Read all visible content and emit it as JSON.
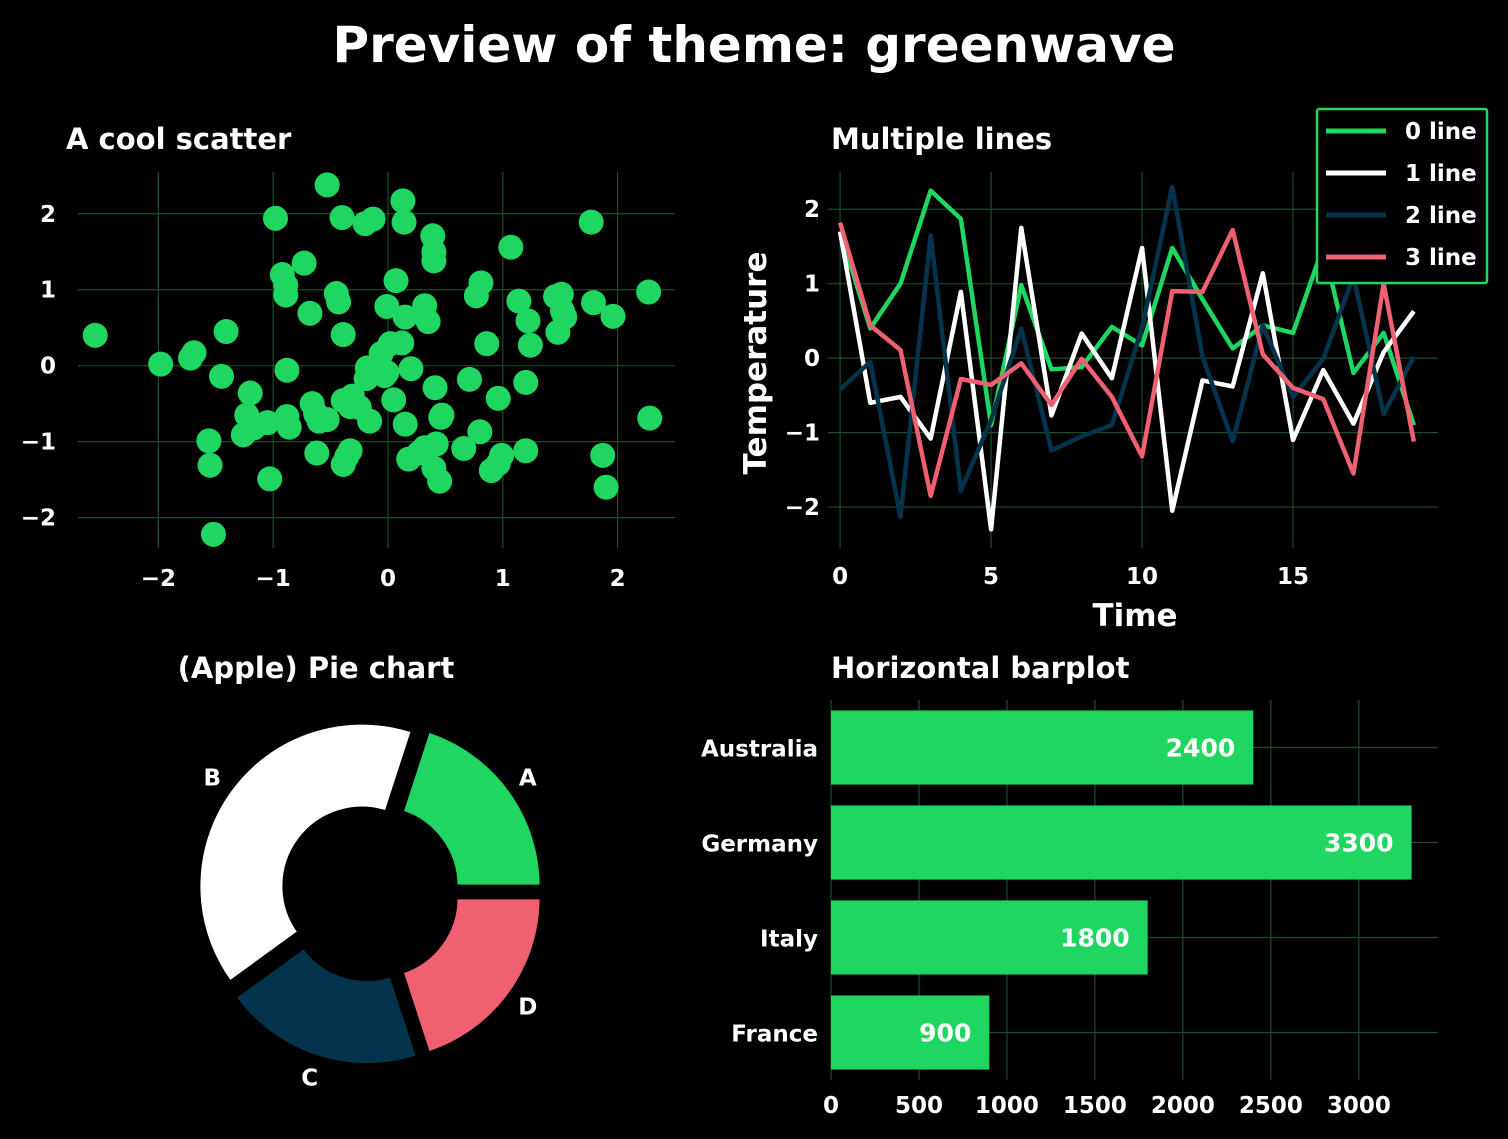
{
  "suptitle": "Preview of theme: greenwave",
  "colors": {
    "background": "#000000",
    "green": "#1fd660",
    "white": "#ffffff",
    "navy": "#04344d",
    "red": "#ef6071",
    "grid": "#1a4d28"
  },
  "chart_data": [
    {
      "type": "scatter",
      "title": "A cool scatter",
      "xlabel": "",
      "ylabel": "",
      "xlim": [
        -2.7,
        2.5
      ],
      "ylim": [
        -2.4,
        2.55
      ],
      "xticks": [
        -2,
        -1,
        0,
        1,
        2
      ],
      "yticks": [
        -2,
        -1,
        0,
        1,
        2
      ],
      "tick_labels_x": [
        "−2",
        "−1",
        "0",
        "1",
        "2"
      ],
      "tick_labels_y": [
        "−2",
        "−1",
        "0",
        "1",
        "2"
      ],
      "grid": true,
      "color": "#1fd660",
      "points": [
        [
          -2.55,
          0.4
        ],
        [
          -1.98,
          0.02
        ],
        [
          -1.72,
          0.1
        ],
        [
          -1.69,
          0.17
        ],
        [
          -1.56,
          -0.99
        ],
        [
          -1.55,
          -1.31
        ],
        [
          -1.52,
          -2.22
        ],
        [
          -1.45,
          -0.14
        ],
        [
          -1.41,
          0.45
        ],
        [
          -1.2,
          -0.36
        ],
        [
          -1.23,
          -0.65
        ],
        [
          -1.26,
          -0.91
        ],
        [
          -1.17,
          -0.82
        ],
        [
          -1.05,
          -0.75
        ],
        [
          -1.03,
          -1.49
        ],
        [
          -0.98,
          1.94
        ],
        [
          -0.92,
          1.2
        ],
        [
          -0.89,
          1.06
        ],
        [
          -0.89,
          0.93
        ],
        [
          -0.88,
          -0.06
        ],
        [
          -0.88,
          -0.67
        ],
        [
          -0.86,
          -0.81
        ],
        [
          -0.73,
          1.35
        ],
        [
          -0.68,
          0.69
        ],
        [
          -0.66,
          -0.5
        ],
        [
          -0.63,
          -0.63
        ],
        [
          -0.6,
          -0.73
        ],
        [
          -0.62,
          -1.15
        ],
        [
          -0.53,
          2.38
        ],
        [
          -0.53,
          -0.71
        ],
        [
          -0.45,
          0.95
        ],
        [
          -0.43,
          0.84
        ],
        [
          -0.4,
          1.95
        ],
        [
          -0.39,
          0.41
        ],
        [
          -0.39,
          -1.3
        ],
        [
          -0.39,
          -0.46
        ],
        [
          -0.36,
          -1.2
        ],
        [
          -0.33,
          -0.54
        ],
        [
          -0.31,
          -0.4
        ],
        [
          -0.33,
          -1.12
        ],
        [
          -0.25,
          -0.55
        ],
        [
          -0.2,
          1.87
        ],
        [
          -0.19,
          -0.17
        ],
        [
          -0.18,
          -0.03
        ],
        [
          -0.16,
          -0.73
        ],
        [
          -0.13,
          1.93
        ],
        [
          -0.06,
          0.16
        ],
        [
          -0.03,
          -0.13
        ],
        [
          -0.01,
          -0.09
        ],
        [
          -0.01,
          0.78
        ],
        [
          0.02,
          0.29
        ],
        [
          0.05,
          -0.45
        ],
        [
          0.07,
          1.12
        ],
        [
          0.12,
          0.3
        ],
        [
          0.13,
          2.17
        ],
        [
          0.14,
          1.89
        ],
        [
          0.15,
          -0.77
        ],
        [
          0.15,
          0.64
        ],
        [
          0.18,
          -1.23
        ],
        [
          0.2,
          -0.04
        ],
        [
          0.27,
          -1.15
        ],
        [
          0.32,
          0.79
        ],
        [
          0.32,
          -1.08
        ],
        [
          0.35,
          0.58
        ],
        [
          0.39,
          1.71
        ],
        [
          0.4,
          1.38
        ],
        [
          0.4,
          1.5
        ],
        [
          0.4,
          -1.35
        ],
        [
          0.41,
          -0.29
        ],
        [
          0.42,
          -1.03
        ],
        [
          0.45,
          -1.52
        ],
        [
          0.46,
          -0.68
        ],
        [
          0.47,
          -0.65
        ],
        [
          0.66,
          -1.09
        ],
        [
          0.71,
          -0.18
        ],
        [
          0.77,
          0.92
        ],
        [
          0.8,
          -0.87
        ],
        [
          0.81,
          1.09
        ],
        [
          0.86,
          0.29
        ],
        [
          0.9,
          -1.38
        ],
        [
          0.96,
          -0.43
        ],
        [
          0.96,
          -1.29
        ],
        [
          0.99,
          -1.18
        ],
        [
          1.07,
          1.56
        ],
        [
          1.14,
          0.85
        ],
        [
          1.2,
          -1.12
        ],
        [
          1.2,
          -0.22
        ],
        [
          1.22,
          0.59
        ],
        [
          1.24,
          0.27
        ],
        [
          1.46,
          0.91
        ],
        [
          1.48,
          0.44
        ],
        [
          1.51,
          0.94
        ],
        [
          1.52,
          0.72
        ],
        [
          1.54,
          0.64
        ],
        [
          1.77,
          1.89
        ],
        [
          1.79,
          0.83
        ],
        [
          1.87,
          -1.18
        ],
        [
          1.9,
          -1.6
        ],
        [
          1.96,
          0.65
        ],
        [
          2.27,
          0.97
        ],
        [
          2.28,
          -0.69
        ]
      ]
    },
    {
      "type": "line",
      "title": "Multiple lines",
      "xlabel": "Time",
      "ylabel": "Temperature",
      "xlim": [
        -0.4,
        19.8
      ],
      "ylim": [
        -2.55,
        2.5
      ],
      "xticks": [
        0,
        5,
        10,
        15
      ],
      "yticks": [
        -2,
        -1,
        0,
        1,
        2
      ],
      "tick_labels_x": [
        "0",
        "5",
        "10",
        "15"
      ],
      "tick_labels_y": [
        "−2",
        "−1",
        "0",
        "1",
        "2"
      ],
      "grid": true,
      "legend_position": "top-right",
      "x": [
        0,
        1,
        2,
        3,
        4,
        5,
        6,
        7,
        8,
        9,
        10,
        11,
        12,
        13,
        14,
        15,
        16,
        17,
        18,
        19
      ],
      "series": [
        {
          "name": "0 line",
          "color": "#1fd660",
          "values": [
            1.7,
            0.4,
            1.0,
            2.25,
            1.87,
            -0.9,
            0.98,
            -0.15,
            -0.12,
            0.42,
            0.17,
            1.48,
            0.79,
            0.13,
            0.44,
            0.34,
            1.5,
            -0.2,
            0.34,
            -0.9
          ]
        },
        {
          "name": "1 line",
          "color": "#ffffff",
          "values": [
            1.7,
            -0.6,
            -0.52,
            -1.08,
            0.89,
            -2.3,
            1.75,
            -0.77,
            0.33,
            -0.27,
            1.48,
            -2.05,
            -0.3,
            -0.38,
            1.14,
            -1.1,
            -0.16,
            -0.88,
            0.08,
            0.63
          ]
        },
        {
          "name": "2 line",
          "color": "#04344d",
          "values": [
            -0.42,
            -0.05,
            -2.13,
            1.65,
            -1.78,
            -0.83,
            0.4,
            -1.24,
            -1.05,
            -0.9,
            0.41,
            2.3,
            0.02,
            -1.12,
            0.44,
            -0.52,
            -0.01,
            1.1,
            -0.75,
            0.02
          ]
        },
        {
          "name": "3 line",
          "color": "#ef6071",
          "values": [
            1.82,
            0.44,
            0.11,
            -1.85,
            -0.28,
            -0.36,
            -0.07,
            -0.63,
            -0.01,
            -0.52,
            -1.32,
            0.9,
            0.89,
            1.72,
            0.05,
            -0.4,
            -0.55,
            -1.55,
            1.0,
            -1.12
          ]
        }
      ]
    },
    {
      "type": "pie",
      "title": "(Apple) Pie chart",
      "donut": true,
      "labels": [
        "A",
        "B",
        "C",
        "D"
      ],
      "values": [
        20,
        40,
        20,
        20
      ],
      "colors": [
        "#1fd660",
        "#ffffff",
        "#04344d",
        "#ef6071"
      ],
      "explode": [
        0.08,
        0.08,
        0.08,
        0.08
      ]
    },
    {
      "type": "bar",
      "orientation": "horizontal",
      "title": "Horizontal barplot",
      "categories": [
        "Australia",
        "Germany",
        "Italy",
        "France"
      ],
      "values": [
        2400,
        3300,
        1800,
        900
      ],
      "value_labels": [
        "2400",
        "3300",
        "1800",
        "900"
      ],
      "xlim": [
        0,
        3450
      ],
      "xticks": [
        0,
        500,
        1000,
        1500,
        2000,
        2500,
        3000
      ],
      "tick_labels_x": [
        "0",
        "500",
        "1000",
        "1500",
        "2000",
        "2500",
        "3000"
      ],
      "grid": true,
      "color": "#1fd660"
    }
  ]
}
